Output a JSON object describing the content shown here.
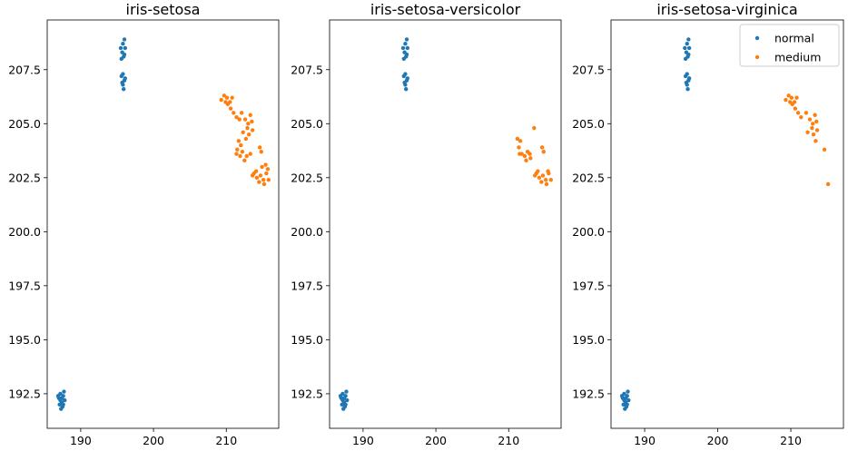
{
  "chart_data": [
    {
      "type": "scatter",
      "title": "iris-setosa",
      "xlabel": "",
      "ylabel": "",
      "xlim": [
        185.4,
        217.2
      ],
      "ylim": [
        190.9,
        209.8
      ],
      "xticks": [
        190,
        200,
        210
      ],
      "yticks": [
        192.5,
        195.0,
        197.5,
        200.0,
        202.5,
        205.0,
        207.5
      ],
      "legend": false,
      "series": [
        {
          "name": "normal",
          "color": "#1f77b4",
          "points": [
            [
              187.0,
              192.3
            ],
            [
              187.2,
              192.5
            ],
            [
              187.4,
              192.1
            ],
            [
              187.6,
              192.4
            ],
            [
              187.1,
              192.0
            ],
            [
              187.5,
              191.9
            ],
            [
              187.8,
              192.2
            ],
            [
              187.3,
              191.8
            ],
            [
              186.9,
              192.4
            ],
            [
              187.7,
              192.6
            ],
            [
              187.4,
              192.3
            ],
            [
              187.2,
              192.2
            ],
            [
              187.6,
              192.0
            ],
            [
              195.5,
              208.5
            ],
            [
              195.8,
              208.7
            ],
            [
              196.0,
              208.9
            ],
            [
              195.7,
              208.3
            ],
            [
              196.1,
              208.5
            ],
            [
              195.9,
              208.1
            ],
            [
              195.6,
              208.0
            ],
            [
              196.0,
              208.2
            ],
            [
              195.8,
              207.3
            ],
            [
              196.0,
              207.0
            ],
            [
              195.7,
              206.9
            ],
            [
              195.9,
              206.6
            ],
            [
              196.1,
              207.1
            ],
            [
              195.6,
              207.2
            ],
            [
              195.8,
              206.8
            ]
          ]
        },
        {
          "name": "medium",
          "color": "#ff7f0e",
          "points": [
            [
              209.3,
              206.1
            ],
            [
              209.7,
              206.3
            ],
            [
              210.1,
              206.2
            ],
            [
              210.5,
              206.0
            ],
            [
              210.8,
              206.2
            ],
            [
              210.2,
              205.9
            ],
            [
              209.9,
              206.0
            ],
            [
              210.6,
              205.7
            ],
            [
              211.0,
              205.5
            ],
            [
              211.4,
              205.3
            ],
            [
              212.1,
              205.5
            ],
            [
              212.6,
              205.2
            ],
            [
              213.3,
              205.4
            ],
            [
              213.0,
              205.0
            ],
            [
              213.5,
              205.1
            ],
            [
              211.8,
              205.2
            ],
            [
              212.3,
              204.6
            ],
            [
              212.9,
              204.8
            ],
            [
              213.1,
              204.5
            ],
            [
              213.6,
              204.7
            ],
            [
              212.7,
              204.3
            ],
            [
              211.7,
              204.2
            ],
            [
              212.0,
              204.0
            ],
            [
              211.5,
              203.8
            ],
            [
              211.4,
              203.6
            ],
            [
              212.2,
              203.7
            ],
            [
              212.8,
              203.5
            ],
            [
              213.3,
              203.6
            ],
            [
              212.5,
              203.3
            ],
            [
              211.9,
              203.5
            ],
            [
              213.8,
              202.7
            ],
            [
              214.2,
              202.5
            ],
            [
              214.7,
              202.6
            ],
            [
              215.1,
              202.4
            ],
            [
              215.5,
              202.7
            ],
            [
              215.8,
              202.4
            ],
            [
              214.5,
              202.3
            ],
            [
              215.2,
              202.2
            ],
            [
              214.9,
              203.0
            ],
            [
              215.4,
              203.1
            ],
            [
              214.6,
              203.9
            ],
            [
              214.8,
              203.7
            ],
            [
              213.6,
              202.6
            ],
            [
              215.7,
              202.9
            ],
            [
              214.1,
              202.8
            ]
          ]
        }
      ]
    },
    {
      "type": "scatter",
      "title": "iris-setosa-versicolor",
      "xlabel": "",
      "ylabel": "",
      "xlim": [
        185.4,
        217.2
      ],
      "ylim": [
        190.9,
        209.8
      ],
      "xticks": [
        190,
        200,
        210
      ],
      "yticks": [
        192.5,
        195.0,
        197.5,
        200.0,
        202.5,
        205.0,
        207.5
      ],
      "legend": false,
      "series": [
        {
          "name": "normal",
          "color": "#1f77b4",
          "points": [
            [
              187.0,
              192.3
            ],
            [
              187.2,
              192.5
            ],
            [
              187.4,
              192.1
            ],
            [
              187.6,
              192.4
            ],
            [
              187.1,
              192.0
            ],
            [
              187.5,
              191.9
            ],
            [
              187.8,
              192.2
            ],
            [
              187.3,
              191.8
            ],
            [
              186.9,
              192.4
            ],
            [
              187.7,
              192.6
            ],
            [
              187.4,
              192.3
            ],
            [
              187.2,
              192.2
            ],
            [
              187.6,
              192.0
            ],
            [
              195.5,
              208.5
            ],
            [
              195.8,
              208.7
            ],
            [
              196.0,
              208.9
            ],
            [
              195.7,
              208.3
            ],
            [
              196.1,
              208.5
            ],
            [
              195.9,
              208.1
            ],
            [
              195.6,
              208.0
            ],
            [
              196.0,
              208.2
            ],
            [
              195.8,
              207.3
            ],
            [
              196.0,
              207.0
            ],
            [
              195.7,
              206.9
            ],
            [
              195.9,
              206.6
            ],
            [
              196.1,
              207.1
            ],
            [
              195.6,
              207.2
            ],
            [
              195.8,
              206.8
            ]
          ]
        },
        {
          "name": "medium",
          "color": "#ff7f0e",
          "points": [
            [
              211.2,
              204.3
            ],
            [
              211.6,
              204.2
            ],
            [
              213.5,
              204.8
            ],
            [
              211.4,
              203.9
            ],
            [
              211.8,
              203.6
            ],
            [
              212.2,
              203.5
            ],
            [
              212.6,
              203.7
            ],
            [
              213.0,
              203.4
            ],
            [
              212.4,
              203.3
            ],
            [
              211.5,
              203.6
            ],
            [
              212.9,
              203.6
            ],
            [
              214.6,
              203.9
            ],
            [
              214.8,
              203.7
            ],
            [
              213.8,
              202.7
            ],
            [
              214.2,
              202.5
            ],
            [
              214.7,
              202.6
            ],
            [
              215.1,
              202.4
            ],
            [
              215.5,
              202.7
            ],
            [
              215.8,
              202.4
            ],
            [
              214.5,
              202.3
            ],
            [
              215.2,
              202.2
            ],
            [
              215.4,
              202.8
            ],
            [
              213.6,
              202.6
            ],
            [
              214.0,
              202.8
            ]
          ]
        }
      ]
    },
    {
      "type": "scatter",
      "title": "iris-setosa-virginica",
      "xlabel": "",
      "ylabel": "",
      "xlim": [
        185.4,
        217.2
      ],
      "ylim": [
        190.9,
        209.8
      ],
      "xticks": [
        190,
        200,
        210
      ],
      "yticks": [
        192.5,
        195.0,
        197.5,
        200.0,
        202.5,
        205.0,
        207.5
      ],
      "legend": true,
      "legend_position": "top-right",
      "series": [
        {
          "name": "normal",
          "color": "#1f77b4",
          "points": [
            [
              187.0,
              192.3
            ],
            [
              187.2,
              192.5
            ],
            [
              187.4,
              192.1
            ],
            [
              187.6,
              192.4
            ],
            [
              187.1,
              192.0
            ],
            [
              187.5,
              191.9
            ],
            [
              187.8,
              192.2
            ],
            [
              187.3,
              191.8
            ],
            [
              186.9,
              192.4
            ],
            [
              187.7,
              192.6
            ],
            [
              187.4,
              192.3
            ],
            [
              187.2,
              192.2
            ],
            [
              187.6,
              192.0
            ],
            [
              195.5,
              208.5
            ],
            [
              195.8,
              208.7
            ],
            [
              196.0,
              208.9
            ],
            [
              195.7,
              208.3
            ],
            [
              196.1,
              208.5
            ],
            [
              195.9,
              208.1
            ],
            [
              195.6,
              208.0
            ],
            [
              196.0,
              208.2
            ],
            [
              195.8,
              207.3
            ],
            [
              196.0,
              207.0
            ],
            [
              195.7,
              206.9
            ],
            [
              195.9,
              206.6
            ],
            [
              196.1,
              207.1
            ],
            [
              195.6,
              207.2
            ],
            [
              195.8,
              206.8
            ]
          ]
        },
        {
          "name": "medium",
          "color": "#ff7f0e",
          "points": [
            [
              209.3,
              206.1
            ],
            [
              209.7,
              206.3
            ],
            [
              210.1,
              206.2
            ],
            [
              210.5,
              206.0
            ],
            [
              210.8,
              206.2
            ],
            [
              210.2,
              205.9
            ],
            [
              209.9,
              206.0
            ],
            [
              210.6,
              205.7
            ],
            [
              211.0,
              205.5
            ],
            [
              211.4,
              205.3
            ],
            [
              212.1,
              205.5
            ],
            [
              212.6,
              205.2
            ],
            [
              213.3,
              205.4
            ],
            [
              213.0,
              205.0
            ],
            [
              213.5,
              205.1
            ],
            [
              212.3,
              204.6
            ],
            [
              212.9,
              204.8
            ],
            [
              213.1,
              204.5
            ],
            [
              213.6,
              204.7
            ],
            [
              213.4,
              204.2
            ],
            [
              214.6,
              203.8
            ],
            [
              215.1,
              202.2
            ]
          ]
        }
      ]
    }
  ]
}
